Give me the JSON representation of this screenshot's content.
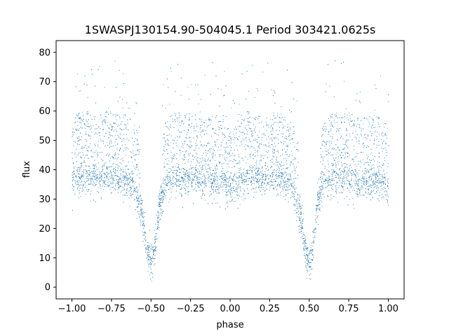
{
  "chart_data": {
    "type": "scatter",
    "title": "1SWASPJ130154.90-504045.1 Period 303421.0625s",
    "xlabel": "phase",
    "ylabel": "flux",
    "xlim": [
      -1.1,
      1.1
    ],
    "ylim": [
      -4,
      84
    ],
    "xticks": [
      -1.0,
      -0.75,
      -0.5,
      -0.25,
      0.0,
      0.25,
      0.5,
      0.75,
      1.0
    ],
    "xtick_labels": [
      "−1.00",
      "−0.75",
      "−0.50",
      "−0.25",
      "0.00",
      "0.25",
      "0.50",
      "0.75",
      "1.00"
    ],
    "yticks": [
      0,
      10,
      20,
      30,
      40,
      50,
      60,
      70,
      80
    ],
    "ytick_labels": [
      "0",
      "10",
      "20",
      "30",
      "40",
      "50",
      "60",
      "70",
      "80"
    ],
    "grid": false,
    "marker_color": "#1f77b4",
    "series": [
      {
        "x": [
          -1.0,
          -0.95,
          -0.9,
          -0.85,
          -0.8,
          -0.75,
          -0.7,
          -0.65,
          -0.6,
          -0.55,
          -0.52,
          -0.5,
          -0.48,
          -0.45,
          -0.4,
          -0.35,
          -0.3,
          -0.25,
          -0.2,
          -0.15,
          -0.1,
          -0.05,
          0.0,
          0.05,
          0.1,
          0.15,
          0.2,
          0.25,
          0.3,
          0.35,
          0.4,
          0.45,
          0.48,
          0.5,
          0.52,
          0.55,
          0.6,
          0.65,
          0.7,
          0.75,
          0.8,
          0.85,
          0.9,
          0.95,
          1.0
        ],
        "y": [
          36,
          38,
          38,
          37,
          38,
          38,
          37,
          37,
          34,
          22,
          10,
          9,
          12,
          28,
          36,
          38,
          37,
          38,
          36,
          36,
          37,
          36,
          33,
          36,
          38,
          38,
          37,
          38,
          38,
          37,
          34,
          22,
          10,
          9,
          12,
          28,
          36,
          38,
          37,
          38,
          36,
          36,
          37,
          36,
          33
        ]
      }
    ]
  }
}
